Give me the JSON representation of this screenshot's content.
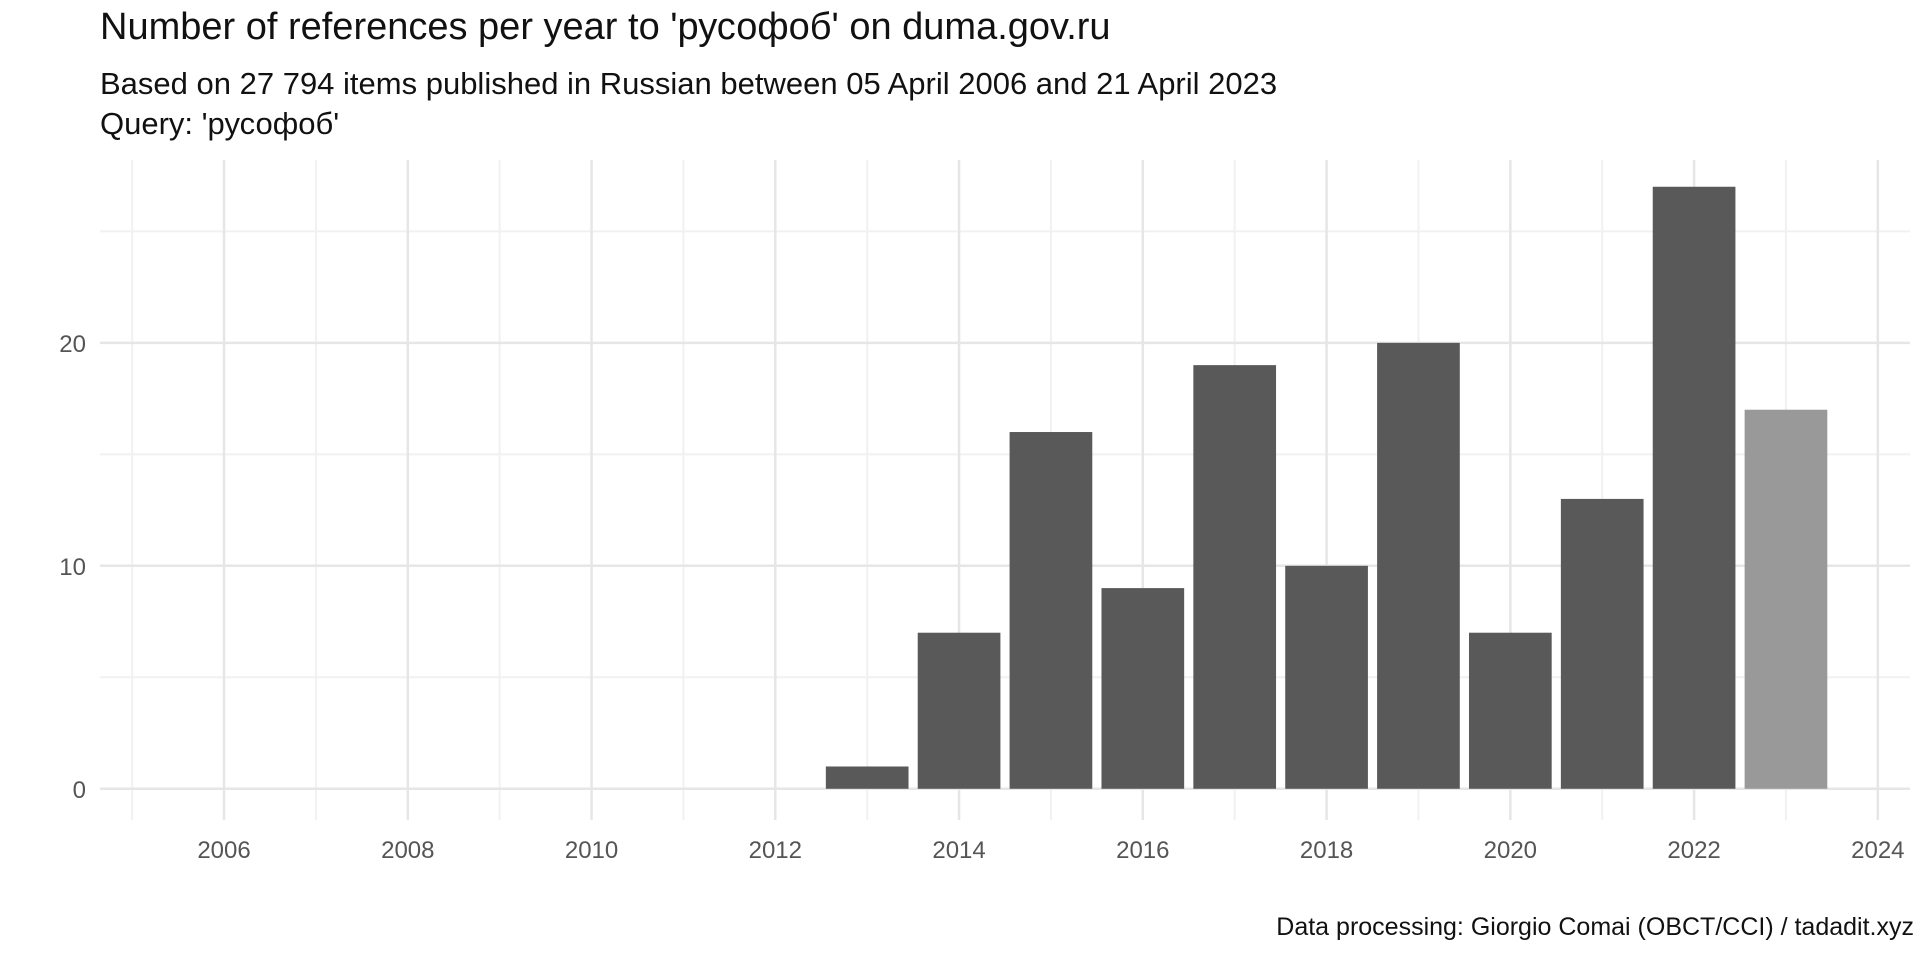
{
  "title": "Number of references per year to 'русофоб' on duma.gov.ru",
  "subtitle_line1": "Based on 27 794 items published in Russian between 05 April 2006 and 21 April 2023",
  "subtitle_line2": "Query: 'русофоб'",
  "caption": "Data processing: Giorgio Comai (OBCT/CCI) / tadadit.xyz",
  "colors": {
    "bar": "#595959",
    "bar_partial": "#999999",
    "grid_major": "#e6e6e6",
    "grid_minor": "#f1f1f1",
    "tick_text": "#555555"
  },
  "chart_data": {
    "type": "bar",
    "title": "Number of references per year to 'русофоб' on duma.gov.ru",
    "xlabel": "",
    "ylabel": "",
    "xlim": [
      2004.65,
      2024.35
    ],
    "ylim": [
      -1.4,
      28.2
    ],
    "grid": true,
    "x_ticks": [
      2006,
      2008,
      2010,
      2012,
      2014,
      2016,
      2018,
      2020,
      2022,
      2024
    ],
    "y_ticks": [
      0,
      10,
      20
    ],
    "categories": [
      2013,
      2014,
      2015,
      2016,
      2017,
      2018,
      2019,
      2020,
      2021,
      2022,
      2023
    ],
    "values": [
      1,
      7,
      16,
      9,
      19,
      10,
      20,
      7,
      13,
      27,
      17
    ],
    "partial_year": 2023
  }
}
